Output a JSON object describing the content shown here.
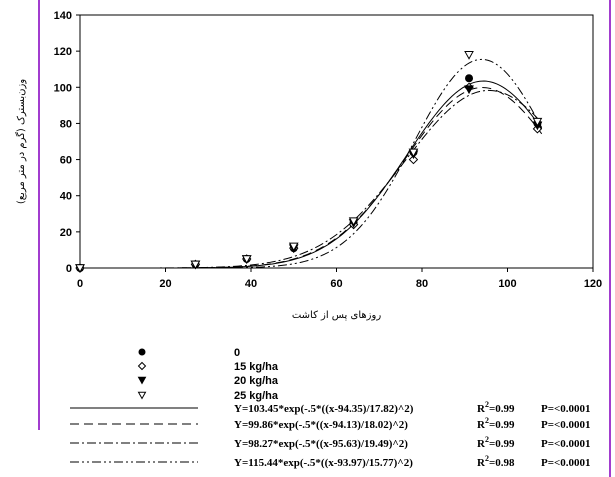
{
  "chart_data": {
    "type": "scatter",
    "xlabel": "روزهای پس از کاشت",
    "ylabel": "وزن‌بسترک (گرم در متر مربع)",
    "xlim": [
      0,
      120
    ],
    "ylim": [
      0,
      140
    ],
    "xticks": [
      "0",
      "20",
      "40",
      "60",
      "80",
      "100",
      "120"
    ],
    "yticks": [
      "0",
      "20",
      "40",
      "60",
      "80",
      "100",
      "120",
      "140"
    ],
    "grid": false,
    "legend_position": "bottom",
    "series": [
      {
        "name": "0",
        "marker": "filled-circle",
        "x": [
          0,
          27,
          39,
          50,
          64,
          78,
          91,
          107
        ],
        "y": [
          0,
          2,
          5,
          11,
          25,
          64,
          105,
          80
        ]
      },
      {
        "name": "15 kg/ha",
        "marker": "open-diamond",
        "x": [
          0,
          27,
          39,
          50,
          64,
          78,
          91,
          107
        ],
        "y": [
          0,
          2,
          5,
          11,
          24,
          60,
          100,
          77
        ]
      },
      {
        "name": "20 kg/ha",
        "marker": "filled-triangle-down",
        "x": [
          0,
          27,
          39,
          50,
          64,
          78,
          91,
          107
        ],
        "y": [
          0,
          2,
          5,
          11,
          25,
          63,
          99,
          79
        ]
      },
      {
        "name": "25 kg/ha",
        "marker": "open-triangle-down",
        "x": [
          0,
          27,
          39,
          50,
          64,
          78,
          91,
          107
        ],
        "y": [
          0,
          2,
          5,
          12,
          26,
          64,
          118,
          81
        ]
      }
    ],
    "fits": [
      {
        "dash": "solid",
        "a": 103.45,
        "x0": 94.35,
        "b": 17.82,
        "equation": "Y=103.45*exp(-.5*((x-94.35)/17.82)^2)",
        "r2_label": "R",
        "r2_value": "=0.99",
        "p": "P=<0.0001"
      },
      {
        "dash": "long-dash",
        "a": 99.86,
        "x0": 94.13,
        "b": 18.02,
        "equation": "Y=99.86*exp(-.5*((x-94.13)/18.02)^2)",
        "r2_label": "R",
        "r2_value": "=0.99",
        "p": "P=<0.0001"
      },
      {
        "dash": "dash-dot",
        "a": 98.27,
        "x0": 95.63,
        "b": 19.49,
        "equation": "Y=98.27*exp(-.5*((x-95.63)/19.49)^2)",
        "r2_label": "R",
        "r2_value": "=0.99",
        "p": "P=<0.0001"
      },
      {
        "dash": "dash-dot-dot",
        "a": 115.44,
        "x0": 93.97,
        "b": 15.77,
        "equation": "Y=115.44*exp(-.5*((x-93.97)/15.77)^2)",
        "r2_label": "R",
        "r2_value": "=0.98",
        "p": "P=<0.0001"
      }
    ]
  }
}
